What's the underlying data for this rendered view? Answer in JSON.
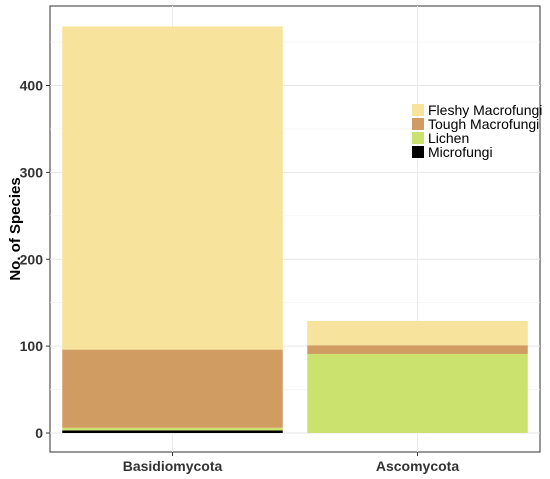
{
  "chart_data": {
    "type": "bar",
    "stacked": true,
    "categories": [
      "Basidiomycota",
      "Ascomycota"
    ],
    "series": [
      {
        "name": "Microfungi",
        "color": "#000000",
        "values": [
          3,
          0
        ]
      },
      {
        "name": "Lichen",
        "color": "#cbe26f",
        "values": [
          3,
          91
        ]
      },
      {
        "name": "Tough Macrofungi",
        "color": "#d09c62",
        "values": [
          90,
          10
        ]
      },
      {
        "name": "Fleshy Macrofungi",
        "color": "#f7e39c",
        "values": [
          372,
          28
        ]
      }
    ],
    "legend_order": [
      "Fleshy Macrofungi",
      "Tough Macrofungi",
      "Lichen",
      "Microfungi"
    ],
    "title": "",
    "xlabel": "",
    "ylabel": "No. of Species",
    "ylim": [
      0,
      480
    ],
    "yticks": [
      0,
      100,
      200,
      300,
      400
    ],
    "grid": true,
    "legend_position": "right, inside plot"
  }
}
